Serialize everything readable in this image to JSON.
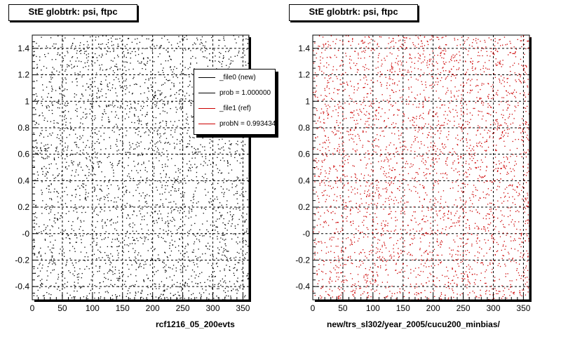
{
  "footer_text": "",
  "chart_data": [
    {
      "type": "scatter",
      "title": "StE globtrk: psi, ftpc",
      "xlabel": "rcf1216_05_200evts",
      "ylabel": "",
      "xlim": [
        0,
        360
      ],
      "ylim": [
        -0.5,
        1.5
      ],
      "xticks": [
        0,
        50,
        100,
        150,
        200,
        250,
        300,
        350
      ],
      "xtick_labels": [
        "0",
        "50",
        "100",
        "150",
        "200",
        "250",
        "300",
        "350"
      ],
      "yticks": [
        -0.4,
        -0.2,
        0,
        0.2,
        0.4,
        0.6,
        0.8,
        1,
        1.2,
        1.4
      ],
      "ytick_labels": [
        "-0.4",
        "-0.2",
        "-0",
        "0.2",
        "0.4",
        "0.6",
        "0.8",
        "1",
        "1.2",
        "1.4"
      ],
      "grid": true,
      "marker_color": "#000000",
      "point_density": "uniform",
      "legend": {
        "placement": "top-right",
        "entries": [
          {
            "label": "_file0 (new)",
            "color": "#000000"
          },
          {
            "label": "prob = 1.000000",
            "color": "#000000"
          },
          {
            "label": "_file1 (ref)",
            "color": "#cc0000"
          },
          {
            "label": "probN = 0.993434",
            "color": "#cc0000"
          }
        ]
      }
    },
    {
      "type": "scatter",
      "title": "StE globtrk: psi, ftpc",
      "xlabel": "new/trs_sl302/year_2005/cucu200_minbias/",
      "ylabel": "",
      "xlim": [
        0,
        360
      ],
      "ylim": [
        -0.5,
        1.5
      ],
      "xticks": [
        0,
        50,
        100,
        150,
        200,
        250,
        300,
        350
      ],
      "xtick_labels": [
        "0",
        "50",
        "100",
        "150",
        "200",
        "250",
        "300",
        "350"
      ],
      "yticks": [
        -0.4,
        -0.2,
        0,
        0.2,
        0.4,
        0.6,
        0.8,
        1,
        1.2,
        1.4
      ],
      "ytick_labels": [
        "-0.4",
        "-0.2",
        "-0",
        "0.2",
        "0.4",
        "0.6",
        "0.8",
        "1",
        "1.2",
        "1.4"
      ],
      "grid": true,
      "marker_color": "#cc0000",
      "point_density": "uniform"
    }
  ]
}
